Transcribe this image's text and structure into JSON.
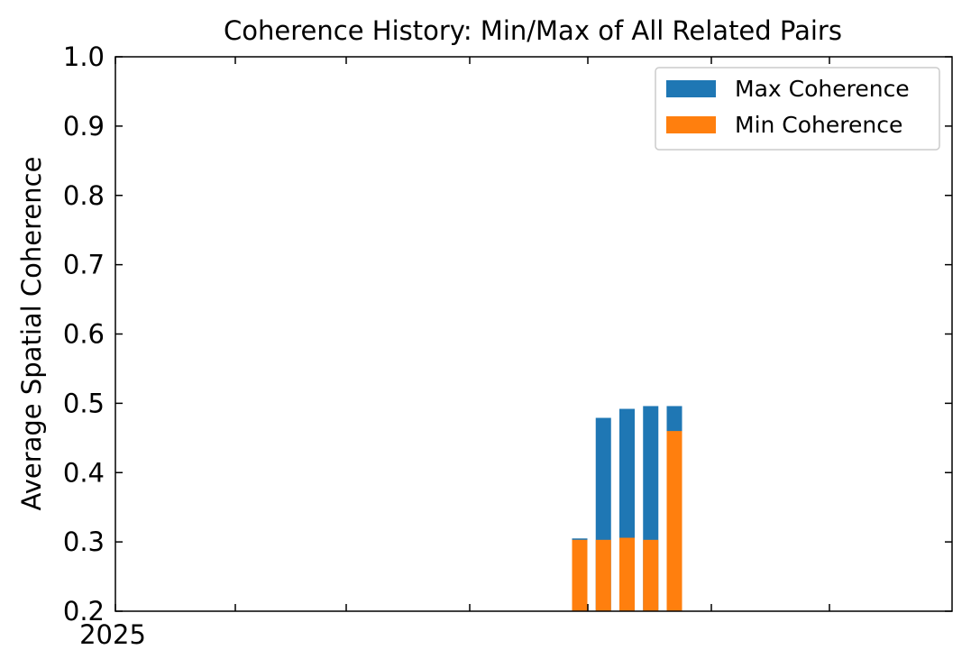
{
  "chart_data": {
    "type": "bar",
    "title": "Coherence History: Min/Max of All Related Pairs",
    "xlabel": "",
    "ylabel": "Average Spatial Coherence",
    "ylim": [
      0.2,
      1.0
    ],
    "y_ticks": [
      "0.2",
      "0.3",
      "0.4",
      "0.5",
      "0.6",
      "0.7",
      "0.8",
      "0.9",
      "1.0"
    ],
    "x_tick_labels": [
      "2025"
    ],
    "legend_position": "top-right",
    "bars": [
      {
        "x": 0.0,
        "min": 0.303,
        "max": 0.305
      },
      {
        "x": 1.0,
        "min": 0.303,
        "max": 0.479
      },
      {
        "x": 2.0,
        "min": 0.306,
        "max": 0.492
      },
      {
        "x": 3.0,
        "min": 0.303,
        "max": 0.496
      },
      {
        "x": 4.0,
        "min": 0.46,
        "max": 0.496
      }
    ],
    "series": [
      {
        "name": "Max Coherence",
        "color": "#1f77b4",
        "values": [
          0.305,
          0.479,
          0.492,
          0.496,
          0.496
        ]
      },
      {
        "name": "Min Coherence",
        "color": "#ff7f0e",
        "values": [
          0.303,
          0.303,
          0.306,
          0.303,
          0.46
        ]
      }
    ],
    "grid": false
  }
}
